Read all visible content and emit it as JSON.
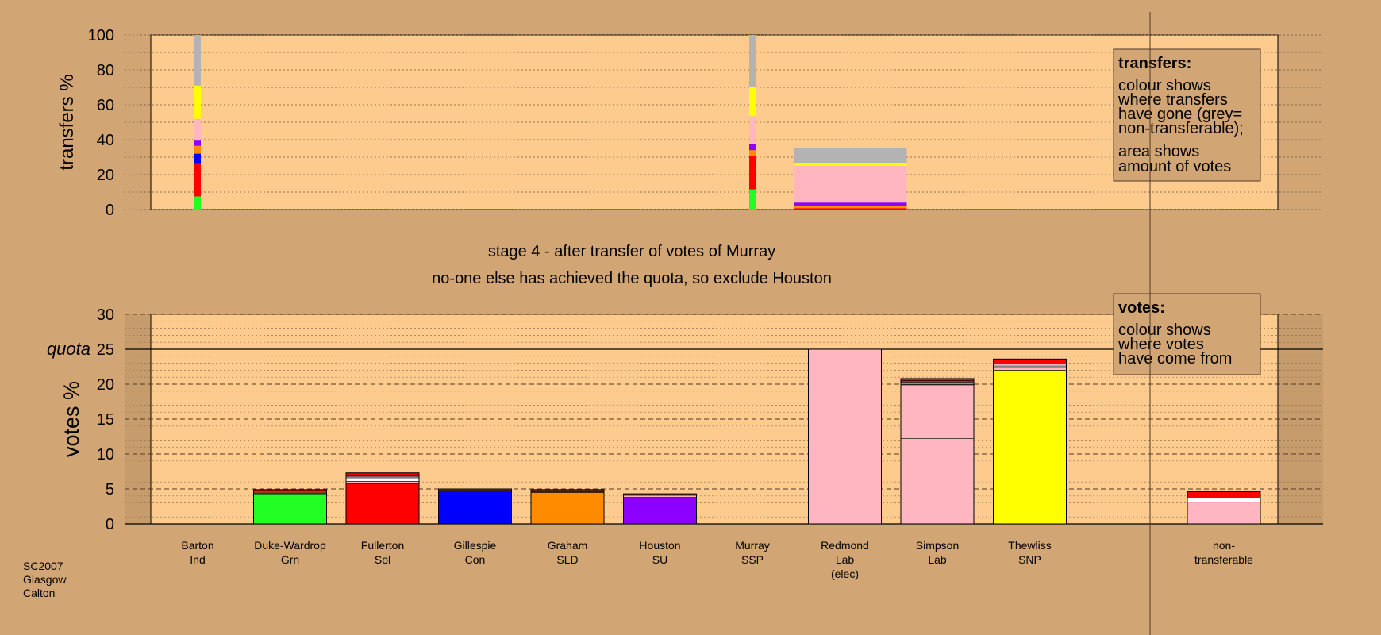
{
  "chart_data": {
    "type": "bar",
    "region": [
      "SC2007",
      "Glasgow",
      "Calton"
    ],
    "stage_title": "stage 4 - after transfer of votes of Murray",
    "stage_note": "no-one else has achieved the quota, so exclude Houston",
    "quota_label": "quota",
    "quota_value": 25,
    "colors": {
      "background": "#d2a674",
      "plot": "#fecb8f",
      "Ind": "#2ee82e",
      "Grn": "#22ff22",
      "Sol": "#ff0000",
      "Con": "#0000ff",
      "SLD": "#ff8c00",
      "SU": "#8b00ff",
      "SSP": "#ffb6c1",
      "Lab": "#ffb6c1",
      "SNP": "#ffff00",
      "nontransferable": "#b3b3b3",
      "brown": "#8b4513"
    },
    "transfers_panel": {
      "ylabel": "transfers %",
      "ylim": [
        0,
        100
      ],
      "yticks": [
        0,
        20,
        40,
        60,
        80,
        100
      ],
      "legend": {
        "title": "transfers:",
        "lines1": [
          "colour shows",
          "where transfers",
          "have gone (grey=",
          "non-transferable);"
        ],
        "lines2": [
          "area shows",
          "amount of votes"
        ]
      },
      "columns": [
        {
          "candidate": "Barton",
          "total_pct": 100,
          "segments": [
            {
              "to": "Grn",
              "color": "#22ff22",
              "value": 7.5
            },
            {
              "to": "Sol",
              "color": "#ff0000",
              "value": 19
            },
            {
              "to": "Con",
              "color": "#0000ff",
              "value": 5.5
            },
            {
              "to": "SLD",
              "color": "#ff8c00",
              "value": 4.5
            },
            {
              "to": "SU",
              "color": "#8b00ff",
              "value": 3
            },
            {
              "to": "Lab",
              "color": "#ffb6c1",
              "value": 12.5
            },
            {
              "to": "SNP",
              "color": "#ffff00",
              "value": 19
            },
            {
              "to": "non-transferable",
              "color": "#b3b3b3",
              "value": 29
            }
          ]
        },
        {
          "candidate": "Murray",
          "total_pct": 100,
          "segments": [
            {
              "to": "Grn",
              "color": "#22ff22",
              "value": 11.5
            },
            {
              "to": "Sol",
              "color": "#ff0000",
              "value": 19
            },
            {
              "to": "SLD",
              "color": "#ff8c00",
              "value": 3.5
            },
            {
              "to": "SU",
              "color": "#8b00ff",
              "value": 3.5
            },
            {
              "to": "Lab",
              "color": "#ffb6c1",
              "value": 16
            },
            {
              "to": "SNP",
              "color": "#ffff00",
              "value": 17
            },
            {
              "to": "non-transferable",
              "color": "#b3b3b3",
              "value": 29.5
            }
          ]
        },
        {
          "candidate": "Redmond",
          "total_pct": 35,
          "segments": [
            {
              "to": "Sol",
              "color": "#ff0000",
              "value": 0.8
            },
            {
              "to": "SLD",
              "color": "#ff8c00",
              "value": 1.2
            },
            {
              "to": "Con",
              "color": "#0000ff",
              "value": 0.3
            },
            {
              "to": "SU",
              "color": "#8b00ff",
              "value": 1.7
            },
            {
              "to": "Lab",
              "color": "#ffb6c1",
              "value": 21
            },
            {
              "to": "SNP",
              "color": "#ffff00",
              "value": 1.8
            },
            {
              "to": "non-transferable",
              "color": "#b3b3b3",
              "value": 8.2
            }
          ]
        }
      ]
    },
    "votes_panel": {
      "ylabel": "votes %",
      "ylim": [
        0,
        30
      ],
      "yticks": [
        0,
        5,
        10,
        15,
        20,
        25,
        30
      ],
      "legend": {
        "title": "votes:",
        "lines1": [
          "colour shows",
          "where votes",
          "have come from"
        ]
      },
      "categories": [
        {
          "name": "Barton",
          "party": "Ind",
          "extra": "",
          "segments": []
        },
        {
          "name": "Duke-Wardrop",
          "party": "Grn",
          "extra": "",
          "segments": [
            {
              "color": "#22ff22",
              "value": 4.3
            },
            {
              "color": "#ffb6c1",
              "value": 0.1
            },
            {
              "color": "#8b4513",
              "value": 0.3
            },
            {
              "color": "#ff0000",
              "value": 0.2
            }
          ]
        },
        {
          "name": "Fullerton",
          "party": "Sol",
          "extra": "",
          "segments": [
            {
              "color": "#ff0000",
              "value": 5.8
            },
            {
              "color": "#ffb6c1",
              "value": 0.3
            },
            {
              "color": "#ffffff",
              "value": 0.5
            },
            {
              "color": "#ffb6c1",
              "value": 0.2
            },
            {
              "color": "#8b4513",
              "value": 0.1
            },
            {
              "color": "#ff0000",
              "value": 0.4
            }
          ]
        },
        {
          "name": "Gillespie",
          "party": "Con",
          "extra": "",
          "segments": [
            {
              "color": "#0000ff",
              "value": 4.8
            },
            {
              "color": "#8b4513",
              "value": 0.2
            }
          ]
        },
        {
          "name": "Graham",
          "party": "SLD",
          "extra": "",
          "segments": [
            {
              "color": "#ff8c00",
              "value": 4.5
            },
            {
              "color": "#ffb6c1",
              "value": 0.1
            },
            {
              "color": "#8b4513",
              "value": 0.3
            }
          ]
        },
        {
          "name": "Houston",
          "party": "SU",
          "extra": "",
          "segments": [
            {
              "color": "#8b00ff",
              "value": 3.8
            },
            {
              "color": "#ffb6c1",
              "value": 0.3
            },
            {
              "color": "#8b4513",
              "value": 0.2
            }
          ]
        },
        {
          "name": "Murray",
          "party": "SSP",
          "extra": "",
          "segments": []
        },
        {
          "name": "Redmond",
          "party": "Lab",
          "extra": "(elec)",
          "segments": [
            {
              "color": "#ffb6c1",
              "value": 25
            }
          ]
        },
        {
          "name": "Simpson",
          "party": "Lab",
          "extra": "",
          "segments": [
            {
              "color": "#ffb6c1",
              "value": 12.2
            },
            {
              "color": "#ffb6c1",
              "value": 7.7
            },
            {
              "color": "#ffffff",
              "value": 0.1
            },
            {
              "color": "#ffb6c1",
              "value": 0.3
            },
            {
              "color": "#8b4513",
              "value": 0.2
            },
            {
              "color": "#ff0000",
              "value": 0.3
            }
          ]
        },
        {
          "name": "Thewliss",
          "party": "SNP",
          "extra": "",
          "segments": [
            {
              "color": "#ffff00",
              "value": 22
            },
            {
              "color": "#ffb6c1",
              "value": 0.4
            },
            {
              "color": "#ffffff",
              "value": 0.2
            },
            {
              "color": "#ffb6c1",
              "value": 0.3
            },
            {
              "color": "#ff0000",
              "value": 0.7
            }
          ]
        },
        {
          "name": "non-",
          "party": "transferable",
          "extra": "",
          "segments": [
            {
              "color": "#ffb6c1",
              "value": 3.1
            },
            {
              "color": "#ffffff",
              "value": 0.6
            },
            {
              "color": "#ff0000",
              "value": 0.9
            }
          ]
        }
      ]
    }
  }
}
